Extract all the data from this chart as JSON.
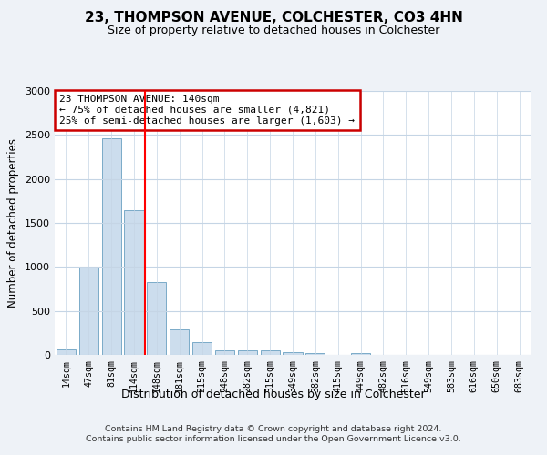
{
  "title": "23, THOMPSON AVENUE, COLCHESTER, CO3 4HN",
  "subtitle": "Size of property relative to detached houses in Colchester",
  "xlabel": "Distribution of detached houses by size in Colchester",
  "ylabel": "Number of detached properties",
  "bar_labels": [
    "14sqm",
    "47sqm",
    "81sqm",
    "114sqm",
    "148sqm",
    "181sqm",
    "215sqm",
    "248sqm",
    "282sqm",
    "315sqm",
    "349sqm",
    "382sqm",
    "415sqm",
    "449sqm",
    "482sqm",
    "516sqm",
    "549sqm",
    "583sqm",
    "616sqm",
    "650sqm",
    "683sqm"
  ],
  "bar_values": [
    60,
    1000,
    2460,
    1640,
    830,
    290,
    140,
    55,
    50,
    50,
    35,
    20,
    5,
    20,
    0,
    0,
    0,
    0,
    0,
    0,
    0
  ],
  "bar_color": "#ccdded",
  "bar_edgecolor": "#7aaac8",
  "red_line_index": 4,
  "ylim": [
    0,
    3000
  ],
  "yticks": [
    0,
    500,
    1000,
    1500,
    2000,
    2500,
    3000
  ],
  "annotation_text": "23 THOMPSON AVENUE: 140sqm\n← 75% of detached houses are smaller (4,821)\n25% of semi-detached houses are larger (1,603) →",
  "annotation_box_color": "#ffffff",
  "annotation_box_edgecolor": "#cc0000",
  "footer_line1": "Contains HM Land Registry data © Crown copyright and database right 2024.",
  "footer_line2": "Contains public sector information licensed under the Open Government Licence v3.0.",
  "background_color": "#eef2f7",
  "plot_background_color": "#ffffff",
  "grid_color": "#c5d5e5"
}
